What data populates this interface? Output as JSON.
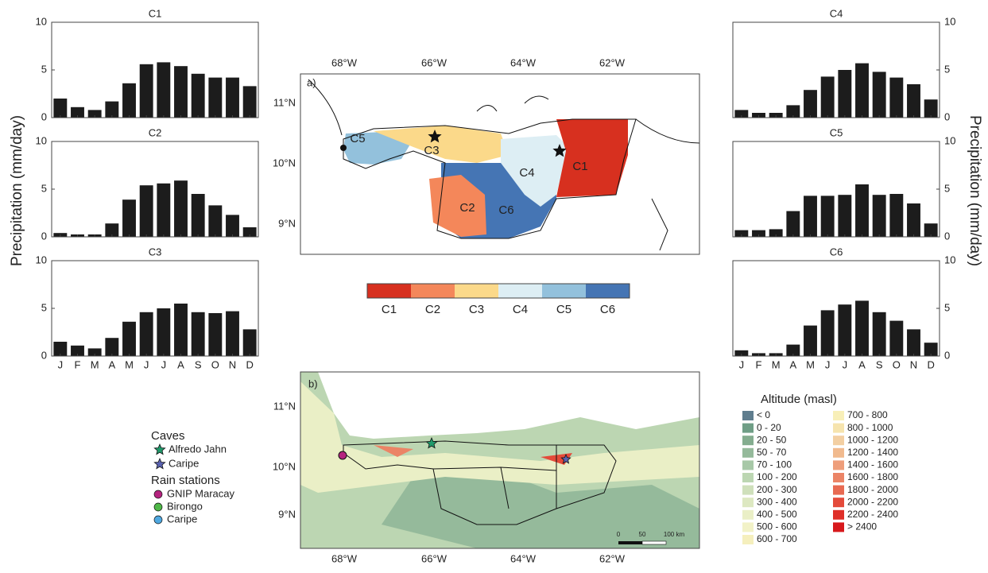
{
  "y_axis_label": "Precipitation (mm/day)",
  "chart_data": [
    {
      "type": "bar",
      "title": "C1",
      "values": [
        2.0,
        1.1,
        0.8,
        1.7,
        3.6,
        5.6,
        5.8,
        5.4,
        4.6,
        4.2,
        4.2,
        3.3
      ],
      "color": "#1c1c1c",
      "ylim": [
        0,
        10
      ],
      "yticks": [
        0,
        5,
        10
      ]
    },
    {
      "type": "bar",
      "title": "C2",
      "values": [
        0.4,
        0.25,
        0.25,
        1.4,
        3.9,
        5.4,
        5.6,
        5.9,
        4.5,
        3.3,
        2.3,
        1.0
      ],
      "color": "#1c1c1c",
      "ylim": [
        0,
        10
      ],
      "yticks": [
        0,
        5,
        10
      ]
    },
    {
      "type": "bar",
      "title": "C3",
      "categories": [
        "J",
        "F",
        "M",
        "A",
        "M",
        "J",
        "J",
        "A",
        "S",
        "O",
        "N",
        "D"
      ],
      "values": [
        1.5,
        1.1,
        0.8,
        1.9,
        3.6,
        4.6,
        5.0,
        5.5,
        4.6,
        4.5,
        4.7,
        2.8
      ],
      "color": "#1c1c1c",
      "ylim": [
        0,
        10
      ],
      "yticks": [
        0,
        5,
        10
      ]
    },
    {
      "type": "bar",
      "title": "C4",
      "values": [
        0.8,
        0.5,
        0.5,
        1.3,
        2.9,
        4.3,
        5.0,
        5.7,
        4.8,
        4.2,
        3.5,
        1.9
      ],
      "color": "#1c1c1c",
      "ylim": [
        0,
        10
      ],
      "yticks": [
        0,
        5,
        10
      ]
    },
    {
      "type": "bar",
      "title": "C5",
      "values": [
        0.7,
        0.7,
        0.8,
        2.7,
        4.3,
        4.3,
        4.4,
        5.5,
        4.4,
        4.5,
        3.5,
        1.4
      ],
      "color": "#1c1c1c",
      "ylim": [
        0,
        10
      ],
      "yticks": [
        0,
        5,
        10
      ]
    },
    {
      "type": "bar",
      "title": "C6",
      "categories": [
        "J",
        "F",
        "M",
        "A",
        "M",
        "J",
        "J",
        "A",
        "S",
        "O",
        "N",
        "D"
      ],
      "values": [
        0.6,
        0.3,
        0.3,
        1.2,
        3.2,
        4.8,
        5.4,
        5.8,
        4.6,
        3.7,
        2.8,
        1.4
      ],
      "color": "#1c1c1c",
      "ylim": [
        0,
        10
      ],
      "yticks": [
        0,
        5,
        10
      ]
    }
  ],
  "map_a": {
    "label": "a)",
    "lon_ticks": [
      "68°W",
      "66°W",
      "64°W",
      "62°W"
    ],
    "lat_ticks": [
      "11°N",
      "10°N",
      "9°N"
    ],
    "cluster_labels": [
      "C1",
      "C2",
      "C3",
      "C4",
      "C5",
      "C6"
    ]
  },
  "colorbar": {
    "classes": [
      {
        "name": "C1",
        "color": "#d7301f"
      },
      {
        "name": "C2",
        "color": "#f4875a"
      },
      {
        "name": "C3",
        "color": "#fbd98a"
      },
      {
        "name": "C4",
        "color": "#ddeef4"
      },
      {
        "name": "C5",
        "color": "#93c1dc"
      },
      {
        "name": "C6",
        "color": "#4575b4"
      }
    ]
  },
  "map_b": {
    "label": "b)",
    "lon_ticks": [
      "68°W",
      "66°W",
      "64°W",
      "62°W"
    ],
    "lat_ticks": [
      "11°N",
      "10°N",
      "9°N"
    ],
    "scale_labels": [
      "0",
      "50",
      "100 km"
    ]
  },
  "caves": {
    "title": "Caves",
    "items": [
      {
        "name": "Alfredo Jahn",
        "color": "#1f9a6b"
      },
      {
        "name": "Caripe",
        "color": "#5a62b0"
      }
    ]
  },
  "rain_stations": {
    "title": "Rain stations",
    "items": [
      {
        "name": "GNIP Maracay",
        "color": "#b5237f"
      },
      {
        "name": "Birongo",
        "color": "#4fb848"
      },
      {
        "name": "Caripe",
        "color": "#4fa8e0"
      }
    ]
  },
  "altitude": {
    "title": "Altitude (masl)",
    "classes": [
      {
        "label": "< 0",
        "color": "#5f7d8e"
      },
      {
        "label": "0 - 20",
        "color": "#6f9e86"
      },
      {
        "label": "20 - 50",
        "color": "#84ad8f"
      },
      {
        "label": "50 - 70",
        "color": "#95ba9b"
      },
      {
        "label": "70 - 100",
        "color": "#a7c8a7"
      },
      {
        "label": "100 - 200",
        "color": "#bcd6b2"
      },
      {
        "label": "200 - 300",
        "color": "#cfe0bb"
      },
      {
        "label": "300 - 400",
        "color": "#dde8c1"
      },
      {
        "label": "400 - 500",
        "color": "#eaefc6"
      },
      {
        "label": "500 - 600",
        "color": "#f2f2c7"
      },
      {
        "label": "600 - 700",
        "color": "#f5efbd"
      },
      {
        "label": "700 - 800",
        "color": "#f8efb8"
      },
      {
        "label": "800 - 1000",
        "color": "#f6e4ae"
      },
      {
        "label": "1000 - 1200",
        "color": "#f3cfa2"
      },
      {
        "label": "1200 - 1400",
        "color": "#f1ba8e"
      },
      {
        "label": "1400 - 1600",
        "color": "#ee9e7b"
      },
      {
        "label": "1600 - 1800",
        "color": "#eb8466"
      },
      {
        "label": "1800 - 2000",
        "color": "#e86a52"
      },
      {
        "label": "2000 - 2200",
        "color": "#e44a3a"
      },
      {
        "label": "2200 - 2400",
        "color": "#df2f29"
      },
      {
        "label": "> 2400",
        "color": "#d7191c"
      }
    ]
  }
}
